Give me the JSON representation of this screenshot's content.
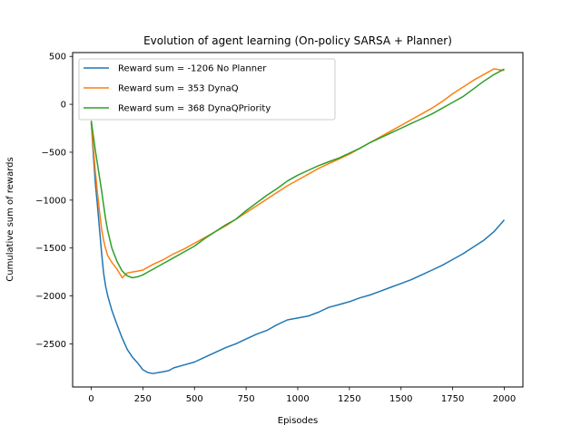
{
  "chart_data": {
    "type": "line",
    "title": "Evolution of agent learning (On-policy SARSA + Planner)",
    "xlabel": "Episodes",
    "ylabel": "Cumulative sum of rewards",
    "xlim": [
      -90,
      2090
    ],
    "ylim": [
      -2950,
      540
    ],
    "xticks": [
      0,
      250,
      500,
      750,
      1000,
      1250,
      1500,
      1750,
      2000
    ],
    "yticks": [
      500,
      0,
      -500,
      -1000,
      -1500,
      -2000,
      -2500
    ],
    "grid": false,
    "legend_position": "top-left",
    "series": [
      {
        "name": "Reward sum = -1206 No Planner",
        "color": "#1f77b4",
        "points": [
          [
            0,
            -190
          ],
          [
            10,
            -520
          ],
          [
            20,
            -820
          ],
          [
            30,
            -1050
          ],
          [
            40,
            -1300
          ],
          [
            50,
            -1550
          ],
          [
            60,
            -1760
          ],
          [
            70,
            -1900
          ],
          [
            80,
            -2000
          ],
          [
            100,
            -2150
          ],
          [
            125,
            -2300
          ],
          [
            150,
            -2440
          ],
          [
            175,
            -2560
          ],
          [
            200,
            -2640
          ],
          [
            225,
            -2700
          ],
          [
            250,
            -2770
          ],
          [
            275,
            -2800
          ],
          [
            300,
            -2810
          ],
          [
            325,
            -2800
          ],
          [
            350,
            -2790
          ],
          [
            375,
            -2780
          ],
          [
            400,
            -2750
          ],
          [
            450,
            -2720
          ],
          [
            500,
            -2690
          ],
          [
            550,
            -2640
          ],
          [
            600,
            -2590
          ],
          [
            650,
            -2540
          ],
          [
            700,
            -2500
          ],
          [
            750,
            -2450
          ],
          [
            800,
            -2400
          ],
          [
            850,
            -2360
          ],
          [
            900,
            -2300
          ],
          [
            950,
            -2250
          ],
          [
            1000,
            -2230
          ],
          [
            1050,
            -2210
          ],
          [
            1100,
            -2170
          ],
          [
            1150,
            -2120
          ],
          [
            1200,
            -2090
          ],
          [
            1250,
            -2060
          ],
          [
            1300,
            -2020
          ],
          [
            1350,
            -1990
          ],
          [
            1400,
            -1950
          ],
          [
            1450,
            -1910
          ],
          [
            1500,
            -1870
          ],
          [
            1550,
            -1830
          ],
          [
            1600,
            -1780
          ],
          [
            1650,
            -1730
          ],
          [
            1700,
            -1680
          ],
          [
            1750,
            -1620
          ],
          [
            1800,
            -1560
          ],
          [
            1850,
            -1490
          ],
          [
            1900,
            -1420
          ],
          [
            1950,
            -1330
          ],
          [
            2000,
            -1206
          ]
        ]
      },
      {
        "name": "Reward sum = 353 DynaQ",
        "color": "#ff7f0e",
        "points": [
          [
            0,
            -190
          ],
          [
            10,
            -450
          ],
          [
            20,
            -700
          ],
          [
            30,
            -920
          ],
          [
            40,
            -1120
          ],
          [
            50,
            -1300
          ],
          [
            60,
            -1420
          ],
          [
            70,
            -1510
          ],
          [
            80,
            -1580
          ],
          [
            100,
            -1650
          ],
          [
            125,
            -1720
          ],
          [
            150,
            -1810
          ],
          [
            175,
            -1760
          ],
          [
            200,
            -1750
          ],
          [
            225,
            -1740
          ],
          [
            250,
            -1730
          ],
          [
            275,
            -1700
          ],
          [
            300,
            -1670
          ],
          [
            350,
            -1620
          ],
          [
            400,
            -1560
          ],
          [
            450,
            -1510
          ],
          [
            500,
            -1450
          ],
          [
            550,
            -1390
          ],
          [
            600,
            -1330
          ],
          [
            650,
            -1270
          ],
          [
            700,
            -1200
          ],
          [
            750,
            -1130
          ],
          [
            800,
            -1060
          ],
          [
            850,
            -990
          ],
          [
            900,
            -920
          ],
          [
            950,
            -850
          ],
          [
            1000,
            -790
          ],
          [
            1050,
            -730
          ],
          [
            1100,
            -670
          ],
          [
            1150,
            -620
          ],
          [
            1200,
            -570
          ],
          [
            1250,
            -520
          ],
          [
            1300,
            -460
          ],
          [
            1350,
            -400
          ],
          [
            1400,
            -340
          ],
          [
            1450,
            -280
          ],
          [
            1500,
            -220
          ],
          [
            1550,
            -160
          ],
          [
            1600,
            -100
          ],
          [
            1650,
            -40
          ],
          [
            1700,
            30
          ],
          [
            1750,
            110
          ],
          [
            1800,
            180
          ],
          [
            1850,
            250
          ],
          [
            1900,
            310
          ],
          [
            1950,
            370
          ],
          [
            2000,
            353
          ]
        ]
      },
      {
        "name": "Reward sum = 368 DynaQPriority",
        "color": "#2ca02c",
        "points": [
          [
            0,
            -170
          ],
          [
            10,
            -330
          ],
          [
            20,
            -480
          ],
          [
            30,
            -620
          ],
          [
            40,
            -760
          ],
          [
            50,
            -900
          ],
          [
            60,
            -1050
          ],
          [
            70,
            -1200
          ],
          [
            80,
            -1320
          ],
          [
            100,
            -1500
          ],
          [
            125,
            -1640
          ],
          [
            150,
            -1740
          ],
          [
            175,
            -1790
          ],
          [
            200,
            -1810
          ],
          [
            225,
            -1800
          ],
          [
            250,
            -1780
          ],
          [
            275,
            -1750
          ],
          [
            300,
            -1720
          ],
          [
            350,
            -1660
          ],
          [
            400,
            -1600
          ],
          [
            450,
            -1540
          ],
          [
            500,
            -1480
          ],
          [
            550,
            -1400
          ],
          [
            600,
            -1330
          ],
          [
            650,
            -1260
          ],
          [
            700,
            -1200
          ],
          [
            750,
            -1110
          ],
          [
            800,
            -1030
          ],
          [
            850,
            -950
          ],
          [
            900,
            -880
          ],
          [
            950,
            -800
          ],
          [
            1000,
            -740
          ],
          [
            1050,
            -690
          ],
          [
            1100,
            -640
          ],
          [
            1150,
            -600
          ],
          [
            1200,
            -560
          ],
          [
            1250,
            -510
          ],
          [
            1300,
            -460
          ],
          [
            1350,
            -400
          ],
          [
            1400,
            -350
          ],
          [
            1450,
            -300
          ],
          [
            1500,
            -250
          ],
          [
            1550,
            -200
          ],
          [
            1600,
            -150
          ],
          [
            1650,
            -100
          ],
          [
            1700,
            -40
          ],
          [
            1750,
            20
          ],
          [
            1800,
            80
          ],
          [
            1850,
            160
          ],
          [
            1900,
            240
          ],
          [
            1950,
            310
          ],
          [
            2000,
            368
          ]
        ]
      }
    ]
  }
}
